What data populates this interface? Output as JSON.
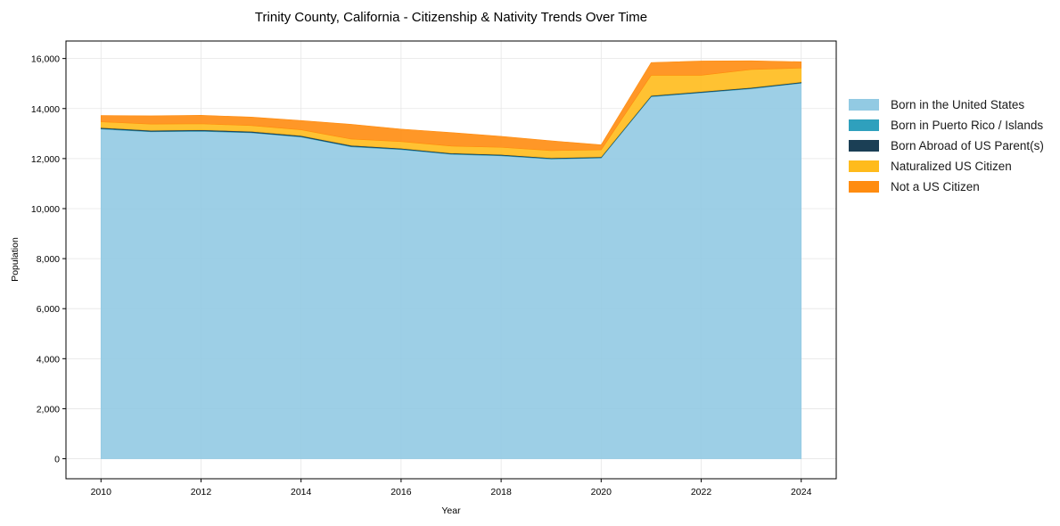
{
  "chart_data": {
    "type": "area",
    "stacked": true,
    "title": "Trinity County, California - Citizenship & Nativity Trends Over Time",
    "xlabel": "Year",
    "ylabel": "Population",
    "x": [
      2010,
      2011,
      2012,
      2013,
      2014,
      2015,
      2016,
      2017,
      2018,
      2019,
      2020,
      2021,
      2022,
      2023,
      2024
    ],
    "xticks": [
      2010,
      2012,
      2014,
      2016,
      2018,
      2020,
      2022,
      2024
    ],
    "xtick_labels": [
      "2010",
      "2012",
      "2014",
      "2016",
      "2018",
      "2020",
      "2022",
      "2024"
    ],
    "yticks": [
      0,
      2000,
      4000,
      6000,
      8000,
      10000,
      12000,
      14000,
      16000
    ],
    "ytick_labels": [
      "0",
      "2,000",
      "4,000",
      "6,000",
      "8,000",
      "10,000",
      "12,000",
      "14,000",
      "16,000"
    ],
    "xlim": [
      2009.3,
      2024.7
    ],
    "ylim": [
      -800,
      16700
    ],
    "grid": true,
    "legend_position": "right outside",
    "series": [
      {
        "name": "Born in the United States",
        "color": "#92CAE3",
        "values": [
          13180,
          13070,
          13090,
          13030,
          12860,
          12470,
          12360,
          12170,
          12110,
          11980,
          12020,
          14470,
          14630,
          14790,
          15010
        ]
      },
      {
        "name": "Born in Puerto Rico / Islands",
        "color": "#2FA0BD",
        "values": [
          20,
          20,
          20,
          20,
          20,
          20,
          20,
          20,
          20,
          20,
          20,
          20,
          20,
          20,
          20
        ]
      },
      {
        "name": "Born Abroad of US Parent(s)",
        "color": "#1B3F55",
        "values": [
          40,
          40,
          40,
          40,
          40,
          40,
          30,
          30,
          30,
          30,
          30,
          30,
          30,
          30,
          30
        ]
      },
      {
        "name": "Naturalized US Citizen",
        "color": "#FFBB1C",
        "values": [
          230,
          250,
          240,
          230,
          230,
          250,
          270,
          280,
          290,
          290,
          280,
          810,
          650,
          720,
          560
        ]
      },
      {
        "name": "Not a US Citizen",
        "color": "#FF8C10",
        "values": [
          250,
          330,
          340,
          340,
          370,
          590,
          500,
          540,
          440,
          390,
          200,
          510,
          570,
          350,
          250
        ]
      }
    ]
  }
}
